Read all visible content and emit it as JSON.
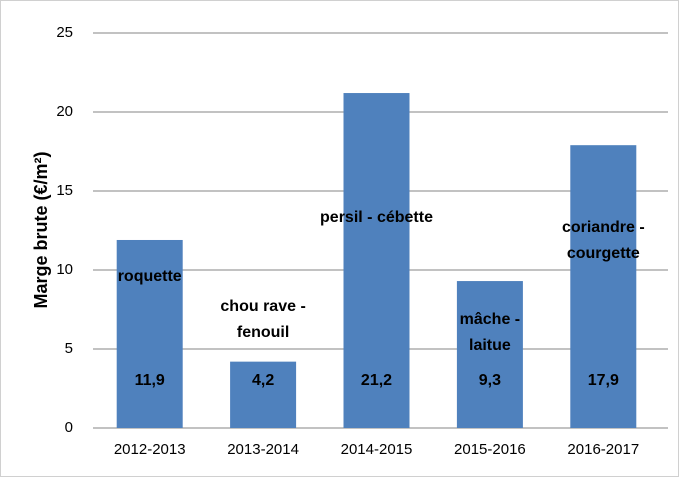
{
  "chart_data": {
    "type": "bar",
    "y_label": "Marge brute (€/m²)",
    "categories": [
      "2012-2013",
      "2013-2014",
      "2014-2015",
      "2015-2016",
      "2016-2017"
    ],
    "values": [
      11.9,
      4.2,
      21.2,
      9.3,
      17.9
    ],
    "value_labels": [
      "11,9",
      "4,2",
      "21,2",
      "9,3",
      "17,9"
    ],
    "bar_labels": [
      [
        "roquette"
      ],
      [
        "chou rave -",
        "fenouil"
      ],
      [
        "persil - cébette"
      ],
      [
        "mâche -",
        "laitue"
      ],
      [
        "coriandre -",
        "courgette"
      ]
    ],
    "color": "#4f81bd",
    "ylim": [
      0,
      25
    ],
    "yticks": [
      0,
      5,
      10,
      15,
      20,
      25
    ],
    "grid": true
  }
}
